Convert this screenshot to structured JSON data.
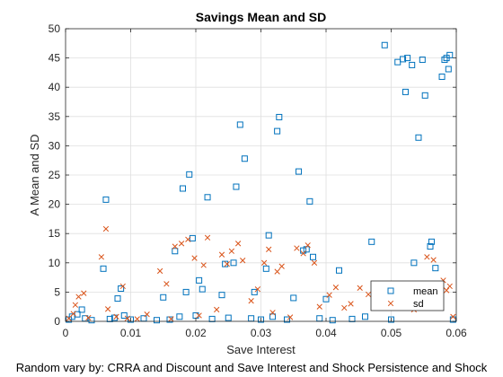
{
  "chart_data": {
    "type": "scatter",
    "title": "Savings Mean and SD",
    "xlabel": "Save Interest",
    "ylabel": "A Mean and SD",
    "caption": "Random vary by: CRRA and Discount and Save Interest and Shock Persistence and Shock",
    "xlim": [
      0,
      0.06
    ],
    "ylim": [
      0,
      50
    ],
    "xticks": [
      "0",
      "0.01",
      "0.02",
      "0.03",
      "0.04",
      "0.05",
      "0.06"
    ],
    "yticks": [
      "0",
      "5",
      "10",
      "15",
      "20",
      "25",
      "30",
      "35",
      "40",
      "45",
      "50"
    ],
    "grid": true,
    "legend_position": "inside-lower-right",
    "series": [
      {
        "name": "mean",
        "marker": "square",
        "color": "#0072BD",
        "points": [
          [
            0.0005,
            0.3
          ],
          [
            0.001,
            0.8
          ],
          [
            0.0018,
            1.2
          ],
          [
            0.0025,
            2.0
          ],
          [
            0.003,
            0.5
          ],
          [
            0.004,
            0.2
          ],
          [
            0.0058,
            9.0
          ],
          [
            0.0062,
            20.8
          ],
          [
            0.0068,
            0.4
          ],
          [
            0.0075,
            0.6
          ],
          [
            0.008,
            3.9
          ],
          [
            0.0085,
            5.6
          ],
          [
            0.009,
            1.0
          ],
          [
            0.01,
            0.3
          ],
          [
            0.012,
            0.5
          ],
          [
            0.014,
            0.2
          ],
          [
            0.015,
            4.1
          ],
          [
            0.016,
            0.3
          ],
          [
            0.0168,
            12.0
          ],
          [
            0.0175,
            0.8
          ],
          [
            0.018,
            22.7
          ],
          [
            0.0185,
            5.0
          ],
          [
            0.019,
            25.1
          ],
          [
            0.0195,
            14.2
          ],
          [
            0.02,
            1.0
          ],
          [
            0.0205,
            7.0
          ],
          [
            0.021,
            5.5
          ],
          [
            0.0218,
            21.2
          ],
          [
            0.0225,
            0.4
          ],
          [
            0.024,
            4.5
          ],
          [
            0.0245,
            9.8
          ],
          [
            0.025,
            0.6
          ],
          [
            0.0258,
            10.0
          ],
          [
            0.0262,
            23.0
          ],
          [
            0.0268,
            33.6
          ],
          [
            0.0275,
            27.8
          ],
          [
            0.0285,
            0.5
          ],
          [
            0.029,
            5.0
          ],
          [
            0.03,
            0.3
          ],
          [
            0.0308,
            9.0
          ],
          [
            0.0312,
            14.7
          ],
          [
            0.0318,
            0.8
          ],
          [
            0.0325,
            32.5
          ],
          [
            0.0328,
            34.9
          ],
          [
            0.034,
            0.3
          ],
          [
            0.035,
            4.0
          ],
          [
            0.0358,
            25.6
          ],
          [
            0.0365,
            12.1
          ],
          [
            0.037,
            12.3
          ],
          [
            0.0375,
            20.5
          ],
          [
            0.038,
            11.0
          ],
          [
            0.039,
            0.5
          ],
          [
            0.04,
            3.8
          ],
          [
            0.041,
            0.2
          ],
          [
            0.042,
            8.7
          ],
          [
            0.044,
            0.4
          ],
          [
            0.046,
            0.8
          ],
          [
            0.047,
            13.6
          ],
          [
            0.048,
            2.5
          ],
          [
            0.049,
            47.2
          ],
          [
            0.05,
            0.3
          ],
          [
            0.051,
            44.3
          ],
          [
            0.0518,
            44.8
          ],
          [
            0.0522,
            39.2
          ],
          [
            0.0525,
            45.0
          ],
          [
            0.0532,
            43.8
          ],
          [
            0.0535,
            10.0
          ],
          [
            0.0542,
            31.4
          ],
          [
            0.0548,
            44.7
          ],
          [
            0.0552,
            38.6
          ],
          [
            0.056,
            12.8
          ],
          [
            0.0562,
            13.6
          ],
          [
            0.0568,
            9.1
          ],
          [
            0.0572,
            4.4
          ],
          [
            0.0578,
            41.8
          ],
          [
            0.0582,
            44.7
          ],
          [
            0.0585,
            45.0
          ],
          [
            0.0588,
            43.1
          ],
          [
            0.059,
            45.5
          ],
          [
            0.0595,
            0.3
          ]
        ]
      },
      {
        "name": "sd",
        "marker": "x",
        "color": "#D95319",
        "points": [
          [
            0.0005,
            0.5
          ],
          [
            0.0012,
            1.3
          ],
          [
            0.0015,
            2.8
          ],
          [
            0.002,
            4.2
          ],
          [
            0.0028,
            4.8
          ],
          [
            0.0035,
            0.6
          ],
          [
            0.0055,
            11.0
          ],
          [
            0.0062,
            15.8
          ],
          [
            0.0065,
            2.1
          ],
          [
            0.0078,
            0.8
          ],
          [
            0.0088,
            6.0
          ],
          [
            0.0095,
            0.5
          ],
          [
            0.011,
            0.4
          ],
          [
            0.0125,
            1.2
          ],
          [
            0.0145,
            8.6
          ],
          [
            0.0155,
            6.4
          ],
          [
            0.0162,
            0.4
          ],
          [
            0.0168,
            12.8
          ],
          [
            0.0178,
            13.3
          ],
          [
            0.0188,
            14.0
          ],
          [
            0.0198,
            10.8
          ],
          [
            0.0205,
            1.0
          ],
          [
            0.0212,
            9.6
          ],
          [
            0.0218,
            14.3
          ],
          [
            0.0232,
            2.0
          ],
          [
            0.024,
            11.4
          ],
          [
            0.0248,
            9.8
          ],
          [
            0.0255,
            12.0
          ],
          [
            0.0265,
            13.3
          ],
          [
            0.0272,
            10.4
          ],
          [
            0.0285,
            3.5
          ],
          [
            0.0295,
            5.5
          ],
          [
            0.0305,
            10.0
          ],
          [
            0.0312,
            12.3
          ],
          [
            0.0318,
            1.5
          ],
          [
            0.0325,
            8.5
          ],
          [
            0.0332,
            9.4
          ],
          [
            0.0345,
            0.7
          ],
          [
            0.0355,
            12.5
          ],
          [
            0.0365,
            11.6
          ],
          [
            0.0372,
            13.0
          ],
          [
            0.0382,
            10.0
          ],
          [
            0.039,
            2.5
          ],
          [
            0.0405,
            4.5
          ],
          [
            0.0415,
            5.8
          ],
          [
            0.0428,
            2.3
          ],
          [
            0.0438,
            3.0
          ],
          [
            0.0452,
            5.7
          ],
          [
            0.0465,
            4.6
          ],
          [
            0.0478,
            6.0
          ],
          [
            0.0485,
            4.1
          ],
          [
            0.0495,
            5.2
          ],
          [
            0.0505,
            6.4
          ],
          [
            0.0515,
            5.8
          ],
          [
            0.0525,
            5.9
          ],
          [
            0.0535,
            2.0
          ],
          [
            0.0545,
            4.5
          ],
          [
            0.0555,
            11.0
          ],
          [
            0.0565,
            10.5
          ],
          [
            0.0572,
            5.6
          ],
          [
            0.058,
            7.0
          ],
          [
            0.0585,
            5.3
          ],
          [
            0.059,
            6.0
          ],
          [
            0.0595,
            0.8
          ]
        ]
      }
    ]
  }
}
